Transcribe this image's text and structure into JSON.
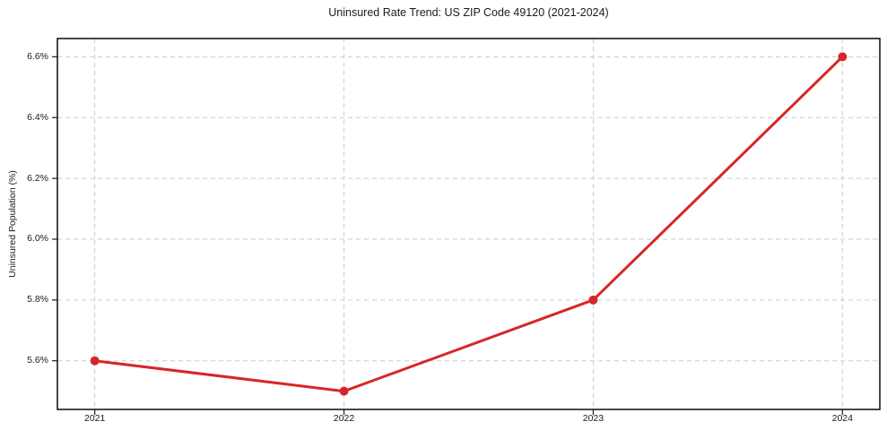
{
  "chart_data": {
    "type": "line",
    "title": "Uninsured Rate Trend: US ZIP Code 49120 (2021-2024)",
    "xlabel": "",
    "ylabel": "Uninsured Population (%)",
    "x": [
      2021,
      2022,
      2023,
      2024
    ],
    "series": [
      {
        "name": "uninsured-rate",
        "values": [
          5.6,
          5.5,
          5.8,
          6.6
        ]
      }
    ],
    "x_tick_labels": [
      "2021",
      "2022",
      "2023",
      "2024"
    ],
    "y_ticks": [
      5.6,
      5.8,
      6.0,
      6.2,
      6.4,
      6.6
    ],
    "y_tick_labels": [
      "5.6%",
      "5.8%",
      "6.0%",
      "6.2%",
      "6.4%",
      "6.6%"
    ],
    "xlim": [
      2020.85,
      2024.15
    ],
    "ylim": [
      5.44,
      6.66
    ],
    "grid": true,
    "grid_style": "dashed",
    "legend": "none",
    "colors": {
      "line": "#d62728",
      "marker": "#d62728",
      "grid": "#cdcdcd",
      "axis": "#1a1a1a",
      "text": "#1a1a1a",
      "background": "#ffffff"
    }
  }
}
